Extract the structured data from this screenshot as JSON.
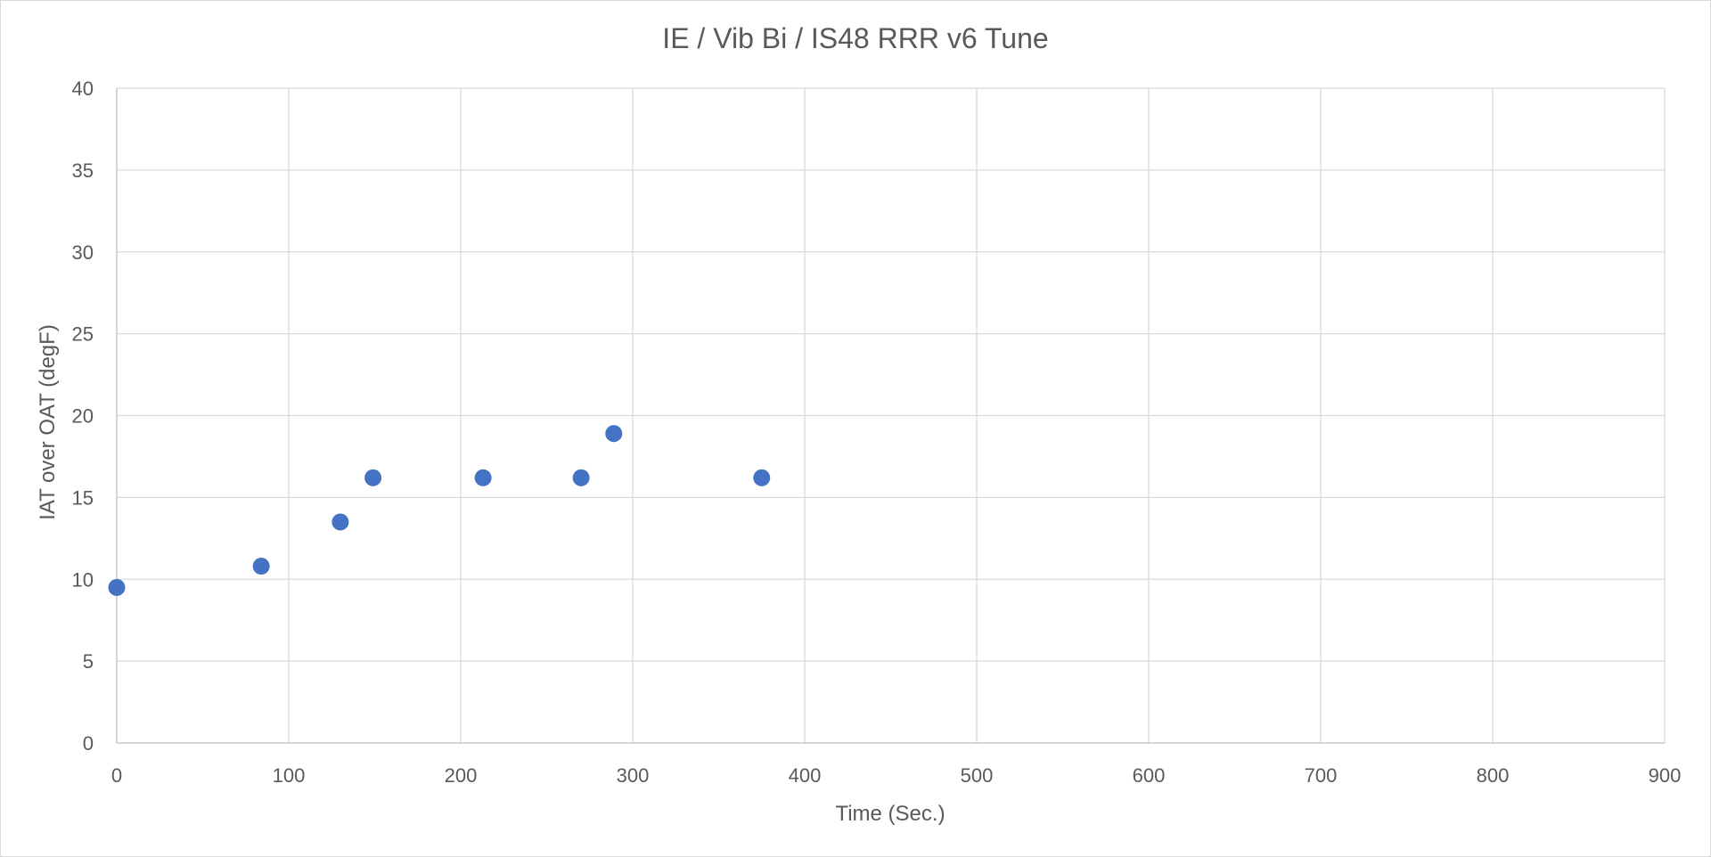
{
  "chart_data": {
    "type": "scatter",
    "title": "IE / Vib Bi / IS48 RRR v6 Tune",
    "xlabel": "Time (Sec.)",
    "ylabel": "IAT over OAT (degF)",
    "xlim": [
      0,
      900
    ],
    "ylim": [
      0,
      40
    ],
    "x_ticks": [
      0,
      100,
      200,
      300,
      400,
      500,
      600,
      700,
      800,
      900
    ],
    "y_ticks": [
      0,
      5,
      10,
      15,
      20,
      25,
      30,
      35,
      40
    ],
    "grid": true,
    "legend": "none",
    "series": [
      {
        "color": "#4472C4",
        "points": [
          {
            "x": 0,
            "y": 9.5
          },
          {
            "x": 84,
            "y": 10.8
          },
          {
            "x": 130,
            "y": 13.5
          },
          {
            "x": 149,
            "y": 16.2
          },
          {
            "x": 213,
            "y": 16.2
          },
          {
            "x": 270,
            "y": 16.2
          },
          {
            "x": 289,
            "y": 18.9
          },
          {
            "x": 375,
            "y": 16.2
          }
        ]
      }
    ]
  }
}
